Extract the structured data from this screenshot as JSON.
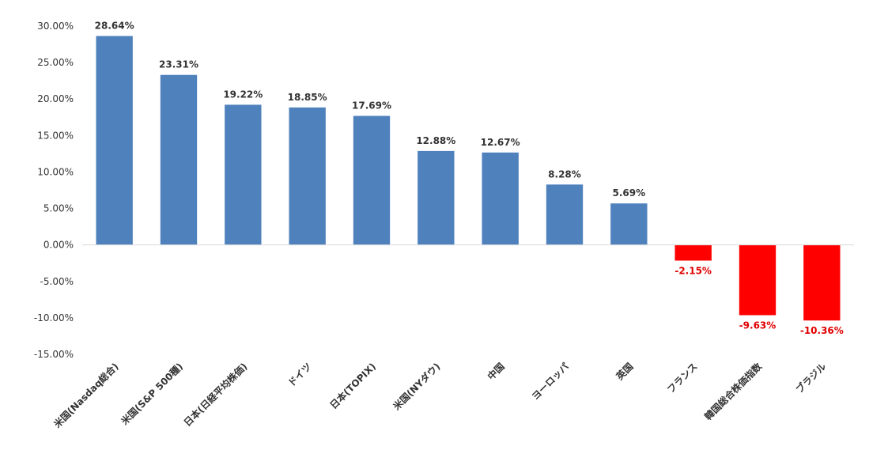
{
  "chart_data": {
    "type": "bar",
    "title": "",
    "xlabel": "",
    "ylabel": "",
    "ylim": [
      -15,
      30
    ],
    "yticks": [
      30,
      25,
      20,
      15,
      10,
      5,
      0,
      -5,
      -10,
      -15
    ],
    "ytick_labels": [
      "30.00%",
      "25.00%",
      "20.00%",
      "15.00%",
      "10.00%",
      "5.00%",
      "0.00%",
      "-5.00%",
      "-10.00%",
      "-15.00%"
    ],
    "grid": false,
    "legend": "none",
    "categories": [
      "米国(Nasdaq総合)",
      "米国(S&P 500種)",
      "日本(日経平均株価)",
      "ドイツ",
      "日本(TOPIX)",
      "米国(NYダウ)",
      "中国",
      "ヨーロッパ",
      "英国",
      "フランス",
      "韓国総合株価指数",
      "ブラジル"
    ],
    "values": [
      28.64,
      23.31,
      19.22,
      18.85,
      17.69,
      12.88,
      12.67,
      8.28,
      5.69,
      -2.15,
      -9.63,
      -10.36
    ],
    "value_labels": [
      "28.64%",
      "23.31%",
      "19.22%",
      "18.85%",
      "17.69%",
      "12.88%",
      "12.67%",
      "8.28%",
      "5.69%",
      "-2.15%",
      "-9.63%",
      "-10.36%"
    ],
    "colors": {
      "positive": "#4F81BD",
      "negative": "#FF0000",
      "positive_label": "#333333",
      "negative_label": "#E00000",
      "axis": "#D9D9D9"
    }
  }
}
